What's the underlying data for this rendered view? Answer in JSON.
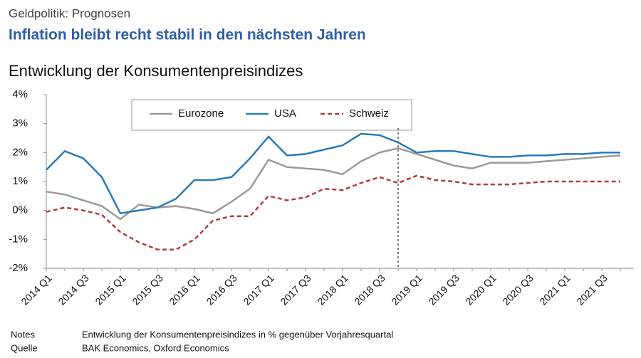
{
  "header": {
    "kicker": "Geldpolitik: Prognosen",
    "title": "Inflation bleibt recht stabil in den nächsten Jahren"
  },
  "chart_data": {
    "type": "line",
    "title": "Entwicklung der Konsumentenpreisindizes",
    "categories": [
      "2014 Q1",
      null,
      "2014 Q3",
      null,
      "2015 Q1",
      null,
      "2015 Q3",
      null,
      "2016 Q1",
      null,
      "2016 Q3",
      null,
      "2017 Q1",
      null,
      "2017 Q3",
      null,
      "2018 Q1",
      null,
      "2018 Q3",
      null,
      "2019 Q1",
      null,
      "2019 Q3",
      null,
      "2020 Q1",
      null,
      "2020 Q3",
      null,
      "2021 Q1",
      null,
      "2021 Q3",
      null
    ],
    "series": [
      {
        "name": "Eurozone",
        "color": "#9a9a9a",
        "dash": false,
        "values": [
          0.65,
          0.55,
          0.35,
          0.15,
          -0.3,
          0.2,
          0.1,
          0.15,
          0.05,
          -0.1,
          0.3,
          0.75,
          1.75,
          1.5,
          1.45,
          1.4,
          1.25,
          1.7,
          2.0,
          2.15,
          1.95,
          1.75,
          1.55,
          1.45,
          1.65,
          1.65,
          1.65,
          1.7,
          1.75,
          1.8,
          1.85,
          1.9
        ]
      },
      {
        "name": "USA",
        "color": "#2a7ab8",
        "dash": false,
        "values": [
          1.4,
          2.05,
          1.8,
          1.15,
          -0.1,
          0.0,
          0.1,
          0.4,
          1.05,
          1.05,
          1.15,
          1.8,
          2.55,
          1.9,
          1.95,
          2.1,
          2.25,
          2.65,
          2.6,
          2.35,
          2.0,
          2.05,
          2.05,
          1.95,
          1.85,
          1.85,
          1.9,
          1.9,
          1.95,
          1.95,
          2.0,
          2.0
        ]
      },
      {
        "name": "Schweiz",
        "color": "#b03a3a",
        "dash": true,
        "values": [
          -0.05,
          0.1,
          0.0,
          -0.15,
          -0.75,
          -1.1,
          -1.35,
          -1.35,
          -1.0,
          -0.35,
          -0.2,
          -0.2,
          0.5,
          0.35,
          0.45,
          0.75,
          0.7,
          0.95,
          1.15,
          0.95,
          1.2,
          1.05,
          1.0,
          0.9,
          0.9,
          0.9,
          0.95,
          1.0,
          1.0,
          1.0,
          1.0,
          1.0
        ]
      }
    ],
    "ylim": [
      -2,
      4
    ],
    "yticks": [
      {
        "value": -2,
        "label": "-2%"
      },
      {
        "value": -1,
        "label": "-1%"
      },
      {
        "value": 0,
        "label": "0%"
      },
      {
        "value": 1,
        "label": "1%"
      },
      {
        "value": 2,
        "label": "2%"
      },
      {
        "value": 3,
        "label": "3%"
      },
      {
        "value": 4,
        "label": "4%"
      }
    ],
    "grid": false,
    "legend": "top",
    "forecast_line_index": 19
  },
  "notes": [
    {
      "label": "Notes",
      "text": "Entwicklung der Konsumentenpreisindizes in % gegenüber Vorjahresquartal"
    },
    {
      "label": "Quelle",
      "text": "BAK Economics, Oxford Economics"
    }
  ]
}
